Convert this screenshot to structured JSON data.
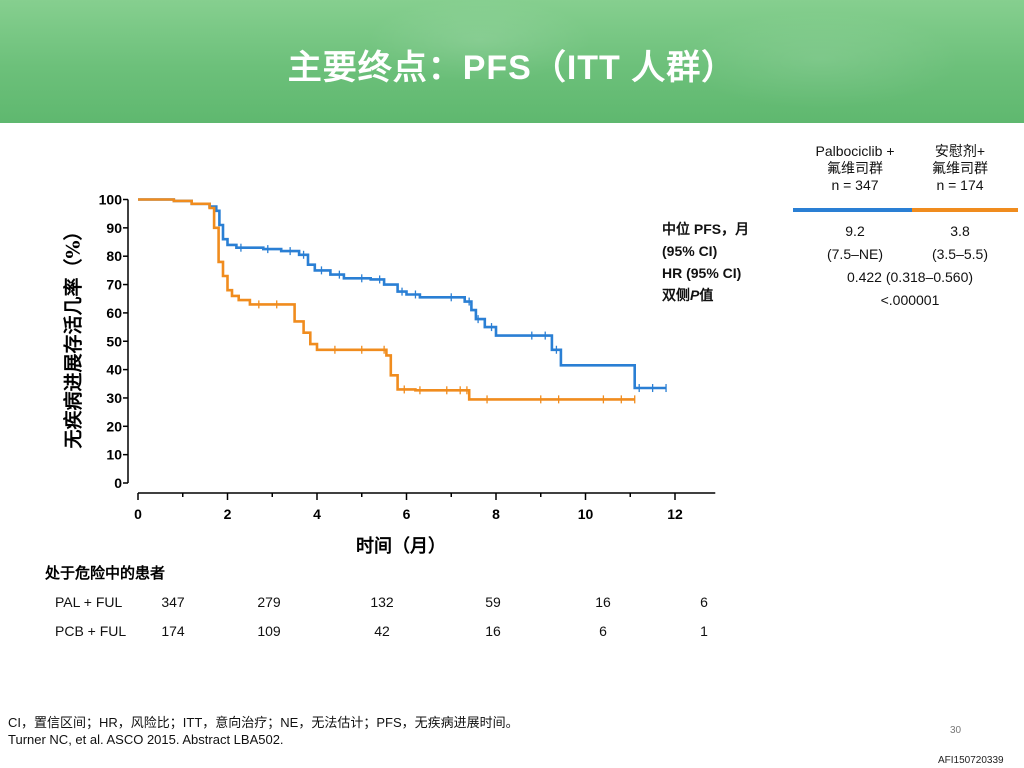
{
  "header": {
    "title": "主要终点：PFS（ITT 人群）"
  },
  "chart_data": {
    "type": "line",
    "ylabel": "无疾病进展存活几率（%）",
    "xlabel": "时间（月）",
    "xlim": [
      0,
      12.9
    ],
    "ylim": [
      0,
      100
    ],
    "xticks": [
      0,
      2,
      4,
      6,
      8,
      10,
      12
    ],
    "yticks": [
      0,
      10,
      20,
      30,
      40,
      50,
      60,
      70,
      80,
      90,
      100
    ],
    "grid": false,
    "series": [
      {
        "name": "Palbociclib + 氟维司群",
        "color": "#2a7fd4",
        "points": [
          [
            0,
            100
          ],
          [
            0.8,
            99.5
          ],
          [
            1.2,
            98.5
          ],
          [
            1.6,
            97.5
          ],
          [
            1.75,
            96
          ],
          [
            1.82,
            91
          ],
          [
            1.9,
            86
          ],
          [
            2.0,
            84
          ],
          [
            2.2,
            83
          ],
          [
            2.8,
            82.5
          ],
          [
            3.2,
            81.8
          ],
          [
            3.6,
            80.5
          ],
          [
            3.8,
            77
          ],
          [
            3.95,
            75
          ],
          [
            4.3,
            73.5
          ],
          [
            4.6,
            72.2
          ],
          [
            5.2,
            71.8
          ],
          [
            5.5,
            70
          ],
          [
            5.8,
            67.5
          ],
          [
            6.0,
            66.5
          ],
          [
            6.3,
            65.5
          ],
          [
            7.1,
            65.5
          ],
          [
            7.3,
            64
          ],
          [
            7.45,
            61
          ],
          [
            7.55,
            57.8
          ],
          [
            7.75,
            55
          ],
          [
            8.0,
            52
          ],
          [
            9.2,
            52
          ],
          [
            9.25,
            47
          ],
          [
            9.4,
            47
          ],
          [
            9.45,
            41.5
          ],
          [
            11.05,
            41.5
          ],
          [
            11.1,
            33.5
          ],
          [
            11.8,
            33.5
          ]
        ],
        "censor_x": [
          2.3,
          2.9,
          3.4,
          3.7,
          4.1,
          4.5,
          5.0,
          5.4,
          5.9,
          6.2,
          7.0,
          7.4,
          7.6,
          7.9,
          8.8,
          9.1,
          9.35,
          11.2,
          11.5,
          11.8
        ]
      },
      {
        "name": "安慰剂+ 氟维司群",
        "color": "#f08c1e",
        "points": [
          [
            0,
            100
          ],
          [
            0.8,
            99.5
          ],
          [
            1.2,
            98.5
          ],
          [
            1.6,
            97
          ],
          [
            1.7,
            90
          ],
          [
            1.8,
            78
          ],
          [
            1.9,
            73
          ],
          [
            2.0,
            68
          ],
          [
            2.1,
            66
          ],
          [
            2.25,
            64.5
          ],
          [
            2.5,
            63
          ],
          [
            3.35,
            63
          ],
          [
            3.5,
            57
          ],
          [
            3.7,
            53
          ],
          [
            3.85,
            49
          ],
          [
            4.0,
            47
          ],
          [
            5.3,
            47
          ],
          [
            5.55,
            45
          ],
          [
            5.65,
            38
          ],
          [
            5.8,
            33
          ],
          [
            6.2,
            32.7
          ],
          [
            7.3,
            32.7
          ],
          [
            7.4,
            29.5
          ],
          [
            11.1,
            29.5
          ]
        ],
        "censor_x": [
          2.7,
          3.1,
          4.4,
          5.0,
          5.5,
          5.95,
          6.3,
          6.9,
          7.2,
          7.35,
          7.8,
          9.0,
          9.4,
          10.4,
          10.8,
          11.1
        ]
      }
    ]
  },
  "legend": {
    "arm1": {
      "line1": "Palbociclib +",
      "line2": "氟维司群",
      "line3": "n = 347"
    },
    "arm2": {
      "line1": "安慰剂+",
      "line2": "氟维司群",
      "line3": "n = 174"
    }
  },
  "stats": {
    "label_median": "中位 PFS，月",
    "label_ci": "(95% CI)",
    "label_hr": "HR (95% CI)",
    "label_p_prefix": "双侧",
    "label_p_italic": "P",
    "label_p_suffix": "值",
    "arm1_median": "9.2",
    "arm1_ci": "(7.5–NE)",
    "arm2_median": "3.8",
    "arm2_ci": "(3.5–5.5)",
    "hr": "0.422 (0.318–0.560)",
    "p": "<.000001"
  },
  "risk_table": {
    "title": "处于危险中的患者",
    "rows": [
      {
        "label": "PAL + FUL",
        "values": [
          "347",
          "279",
          "132",
          "59",
          "16",
          "6"
        ]
      },
      {
        "label": "PCB + FUL",
        "values": [
          "174",
          "109",
          "42",
          "16",
          "6",
          "1"
        ]
      }
    ]
  },
  "footnotes": {
    "line1": "CI，置信区间；HR，风险比；ITT，意向治疗；NE，无法估计；PFS，无疾病进展时间。",
    "line2": "Turner NC, et al. ASCO 2015. Abstract LBA502."
  },
  "page_number": "30",
  "doc_code": "AFI150720339"
}
